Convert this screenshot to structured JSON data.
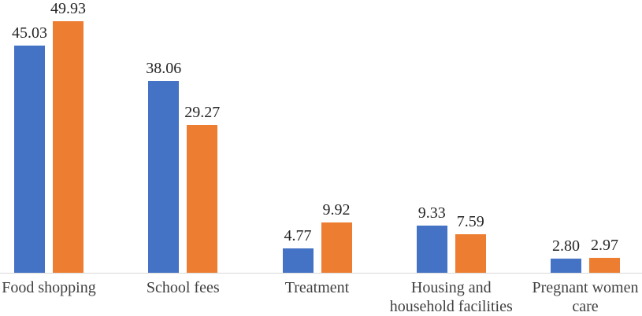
{
  "chart_data": {
    "type": "bar",
    "title": "",
    "xlabel": "",
    "ylabel": "",
    "categories": [
      "Food shopping",
      "School fees",
      "Treatment",
      "Housing and household facilities",
      "Pregnant women care"
    ],
    "category_lines": [
      [
        "Food shopping"
      ],
      [
        "School fees"
      ],
      [
        "Treatment"
      ],
      [
        "Housing and",
        "household facilities"
      ],
      [
        "Pregnant women",
        "care"
      ]
    ],
    "series": [
      {
        "color": "#4472C4",
        "values": [
          45.03,
          38.06,
          4.77,
          9.33,
          2.8
        ],
        "labels": [
          "45.03",
          "38.06",
          "4.77",
          "9.33",
          "2.80"
        ]
      },
      {
        "color": "#ED7D31",
        "values": [
          49.93,
          29.27,
          9.92,
          7.59,
          2.97
        ],
        "labels": [
          "49.93",
          "29.27",
          "9.92",
          "7.59",
          "2.97"
        ]
      }
    ],
    "ylim": [
      0,
      52
    ],
    "grid": false,
    "legend": "none",
    "axis_line_color": "#D9D9D9",
    "value_label_color": "#262626",
    "category_label_color": "#404040"
  }
}
